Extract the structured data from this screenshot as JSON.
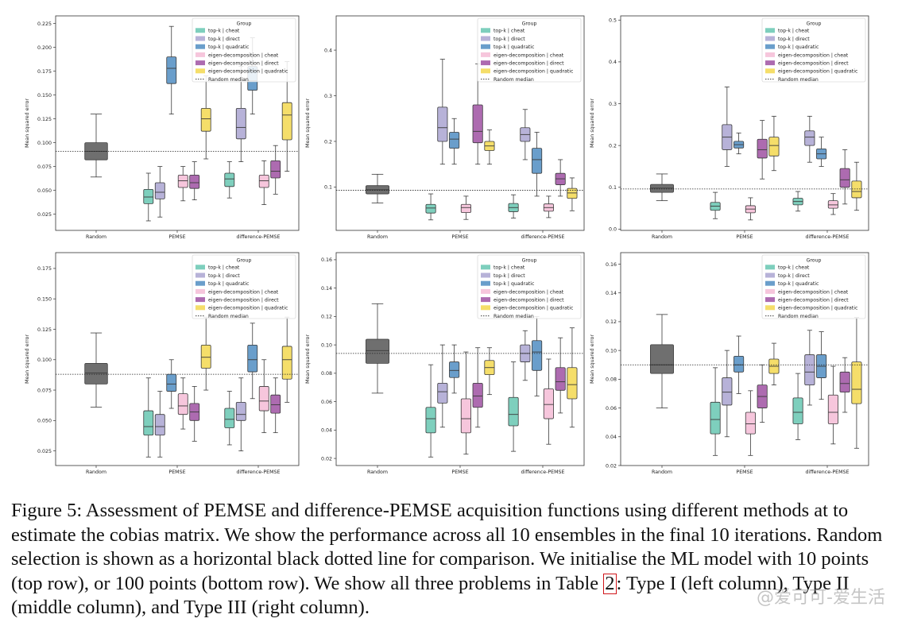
{
  "colors": {
    "random": "#6f6f6f",
    "topk_cheat": "#7ecfbd",
    "topk_direct": "#b7b2d8",
    "topk_quadratic": "#6a9ecb",
    "eigen_cheat": "#f6c6dc",
    "eigen_direct": "#ad6bb0",
    "eigen_quadratic": "#f5de6a"
  },
  "caption": {
    "line1": "Figure 5: Assessment of PEMSE and difference-PEMSE acquisition functions using different methods at to estimate the cobias matrix. We show the performance across all 10 ensembles in the final 10 iterations. Random selection is shown as a horizontal black dotted line for comparison. We initialise the ML model with 10 points (top row), or 100 points (bottom row). We show all three problems in Table ",
    "ref": "2",
    "line2": ": Type I (left column), Type II (middle column), and Type III (right column)."
  },
  "watermark": "@爱可可-爱生活",
  "chart_data": [
    {
      "type": "box",
      "panel": "top-left",
      "ylabel": "Mean squared error",
      "categories": [
        "Random",
        "PEMSE",
        "difference-PEMSE"
      ],
      "yticks": [
        0.025,
        0.05,
        0.075,
        0.1,
        0.125,
        0.15,
        0.175,
        0.2,
        0.225
      ],
      "ytick_labels": [
        "0.025",
        "0.050",
        "0.075",
        "0.100",
        "0.125",
        "0.150",
        "0.175",
        "0.200",
        "0.225"
      ],
      "ylim": [
        0.008,
        0.233
      ],
      "random_median": 0.091,
      "legend_title": "Group",
      "legend": [
        "top-k | cheat",
        "top-k | direct",
        "top-k | quadratic",
        "eigen-decomposition | cheat",
        "eigen-decomposition | direct",
        "eigen-decomposition | quadratic",
        "Random median"
      ],
      "random": [
        0.064,
        0.082,
        0.091,
        0.1,
        0.13
      ],
      "groups": [
        [
          [
            0.018,
            0.036,
            0.043,
            0.051,
            0.068
          ],
          [
            0.022,
            0.041,
            0.048,
            0.058,
            0.075
          ],
          [
            0.13,
            0.162,
            0.178,
            0.19,
            0.222
          ],
          [
            0.039,
            0.053,
            0.06,
            0.066,
            0.075
          ],
          [
            0.04,
            0.052,
            0.058,
            0.066,
            0.08
          ],
          [
            0.083,
            0.112,
            0.125,
            0.136,
            0.17
          ]
        ],
        [
          [
            0.042,
            0.054,
            0.062,
            0.068,
            0.08
          ],
          [
            0.08,
            0.104,
            0.116,
            0.136,
            0.18
          ],
          [
            0.13,
            0.155,
            0.165,
            0.18,
            0.21
          ],
          [
            0.035,
            0.053,
            0.06,
            0.066,
            0.081
          ],
          [
            0.046,
            0.063,
            0.07,
            0.081,
            0.097
          ],
          [
            0.07,
            0.103,
            0.129,
            0.142,
            0.185
          ]
        ]
      ]
    },
    {
      "type": "box",
      "panel": "top-middle",
      "ylabel": "Mean squared error",
      "categories": [
        "Random",
        "PEMSE",
        "difference-PEMSE"
      ],
      "yticks": [
        0.1,
        0.2,
        0.3,
        0.4
      ],
      "ytick_labels": [
        "0.1",
        "0.2",
        "0.3",
        "0.4"
      ],
      "ylim": [
        0.005,
        0.475
      ],
      "random_median": 0.093,
      "legend_title": "Group",
      "legend": [
        "top-k | cheat",
        "top-k | direct",
        "top-k | quadratic",
        "eigen-decomposition | cheat",
        "eigen-decomposition | direct",
        "eigen-decomposition | quadratic",
        "Random median"
      ],
      "random": [
        0.065,
        0.085,
        0.094,
        0.103,
        0.128
      ],
      "groups": [
        [
          [
            0.028,
            0.043,
            0.054,
            0.062,
            0.085
          ],
          [
            0.15,
            0.2,
            0.23,
            0.275,
            0.38
          ],
          [
            0.15,
            0.185,
            0.205,
            0.22,
            0.25
          ],
          [
            0.029,
            0.044,
            0.055,
            0.062,
            0.08
          ],
          [
            0.15,
            0.197,
            0.222,
            0.28,
            0.37
          ],
          [
            0.15,
            0.18,
            0.19,
            0.2,
            0.225
          ]
        ],
        [
          [
            0.032,
            0.046,
            0.055,
            0.064,
            0.083
          ],
          [
            0.16,
            0.2,
            0.215,
            0.23,
            0.27
          ],
          [
            0.08,
            0.13,
            0.16,
            0.185,
            0.22
          ],
          [
            0.033,
            0.047,
            0.055,
            0.063,
            0.08
          ],
          [
            0.08,
            0.105,
            0.118,
            0.13,
            0.16
          ],
          [
            0.048,
            0.075,
            0.087,
            0.097,
            0.12
          ]
        ]
      ]
    },
    {
      "type": "box",
      "panel": "top-right",
      "ylabel": "Mean squared error",
      "categories": [
        "Random",
        "PEMSE",
        "difference-PEMSE"
      ],
      "yticks": [
        0.0,
        0.1,
        0.2,
        0.3,
        0.4,
        0.5
      ],
      "ytick_labels": [
        "0.0",
        "0.1",
        "0.2",
        "0.3",
        "0.4",
        "0.5"
      ],
      "ylim": [
        -0.003,
        0.51
      ],
      "random_median": 0.096,
      "legend_title": "Group",
      "legend": [
        "top-k | cheat",
        "top-k | direct",
        "top-k | quadratic",
        "eigen-decomposition | cheat",
        "eigen-decomposition | direct",
        "eigen-decomposition | quadratic",
        "Random median"
      ],
      "random": [
        0.068,
        0.088,
        0.098,
        0.107,
        0.132
      ],
      "groups": [
        [
          [
            0.025,
            0.045,
            0.055,
            0.064,
            0.088
          ],
          [
            0.15,
            0.19,
            0.22,
            0.25,
            0.34
          ],
          [
            0.18,
            0.194,
            0.202,
            0.21,
            0.23
          ],
          [
            0.022,
            0.039,
            0.048,
            0.056,
            0.075
          ],
          [
            0.12,
            0.17,
            0.19,
            0.215,
            0.26
          ],
          [
            0.14,
            0.175,
            0.2,
            0.22,
            0.27
          ]
        ],
        [
          [
            0.043,
            0.058,
            0.066,
            0.074,
            0.09
          ],
          [
            0.16,
            0.2,
            0.22,
            0.235,
            0.27
          ],
          [
            0.15,
            0.168,
            0.18,
            0.192,
            0.22
          ],
          [
            0.035,
            0.05,
            0.058,
            0.068,
            0.085
          ],
          [
            0.06,
            0.1,
            0.118,
            0.145,
            0.19
          ],
          [
            0.045,
            0.075,
            0.09,
            0.115,
            0.16
          ]
        ]
      ]
    },
    {
      "type": "box",
      "panel": "bottom-left",
      "ylabel": "Mean squared error",
      "categories": [
        "Random",
        "PEMSE",
        "difference-PEMSE"
      ],
      "yticks": [
        0.025,
        0.05,
        0.075,
        0.1,
        0.125,
        0.15,
        0.175
      ],
      "ytick_labels": [
        "0.025",
        "0.050",
        "0.075",
        "0.100",
        "0.125",
        "0.150",
        "0.175"
      ],
      "ylim": [
        0.013,
        0.188
      ],
      "random_median": 0.088,
      "legend_title": "Group",
      "legend": [
        "top-k | cheat",
        "top-k | direct",
        "top-k | quadratic",
        "eigen-decomposition | cheat",
        "eigen-decomposition | direct",
        "eigen-decomposition | quadratic",
        "Random median"
      ],
      "random": [
        0.061,
        0.08,
        0.089,
        0.097,
        0.122
      ],
      "groups": [
        [
          [
            0.02,
            0.038,
            0.045,
            0.058,
            0.085
          ],
          [
            0.02,
            0.038,
            0.045,
            0.055,
            0.074
          ],
          [
            0.06,
            0.074,
            0.08,
            0.088,
            0.1
          ],
          [
            0.043,
            0.055,
            0.062,
            0.072,
            0.085
          ],
          [
            0.033,
            0.05,
            0.057,
            0.064,
            0.078
          ],
          [
            0.075,
            0.093,
            0.102,
            0.112,
            0.135
          ]
        ],
        [
          [
            0.03,
            0.044,
            0.051,
            0.06,
            0.074
          ],
          [
            0.025,
            0.05,
            0.055,
            0.065,
            0.085
          ],
          [
            0.068,
            0.09,
            0.1,
            0.112,
            0.13
          ],
          [
            0.04,
            0.058,
            0.066,
            0.078,
            0.1
          ],
          [
            0.04,
            0.056,
            0.063,
            0.071,
            0.085
          ],
          [
            0.065,
            0.084,
            0.1,
            0.111,
            0.135
          ]
        ]
      ]
    },
    {
      "type": "box",
      "panel": "bottom-middle",
      "ylabel": "Mean squared error",
      "categories": [
        "Random",
        "PEMSE",
        "difference-PEMSE"
      ],
      "yticks": [
        0.02,
        0.04,
        0.06,
        0.08,
        0.1,
        0.12,
        0.14,
        0.16
      ],
      "ytick_labels": [
        "0.02",
        "0.04",
        "0.06",
        "0.08",
        "0.10",
        "0.12",
        "0.14",
        "0.16"
      ],
      "ylim": [
        0.015,
        0.165
      ],
      "random_median": 0.094,
      "legend_title": "Group",
      "legend": [
        "top-k | cheat",
        "top-k | direct",
        "top-k | quadratic",
        "eigen-decomposition | cheat",
        "eigen-decomposition | direct",
        "eigen-decomposition | quadratic",
        "Random median"
      ],
      "random": [
        0.066,
        0.087,
        0.096,
        0.104,
        0.129
      ],
      "groups": [
        [
          [
            0.021,
            0.038,
            0.048,
            0.056,
            0.086
          ],
          [
            0.042,
            0.059,
            0.067,
            0.073,
            0.1
          ],
          [
            0.066,
            0.077,
            0.082,
            0.088,
            0.1
          ],
          [
            0.023,
            0.038,
            0.048,
            0.062,
            0.095
          ],
          [
            0.042,
            0.056,
            0.064,
            0.073,
            0.098
          ],
          [
            0.065,
            0.079,
            0.084,
            0.089,
            0.098
          ]
        ],
        [
          [
            0.025,
            0.043,
            0.051,
            0.063,
            0.088
          ],
          [
            0.075,
            0.088,
            0.094,
            0.1,
            0.11
          ],
          [
            0.064,
            0.082,
            0.095,
            0.103,
            0.12
          ],
          [
            0.03,
            0.048,
            0.058,
            0.069,
            0.09
          ],
          [
            0.052,
            0.068,
            0.074,
            0.084,
            0.105
          ],
          [
            0.042,
            0.062,
            0.072,
            0.084,
            0.112
          ]
        ]
      ]
    },
    {
      "type": "box",
      "panel": "bottom-right",
      "ylabel": "Mean squared error",
      "categories": [
        "Random",
        "PEMSE",
        "difference-PEMSE"
      ],
      "yticks": [
        0.02,
        0.04,
        0.06,
        0.08,
        0.1,
        0.12,
        0.14,
        0.16
      ],
      "ytick_labels": [
        "0.02",
        "0.04",
        "0.06",
        "0.08",
        "0.10",
        "0.12",
        "0.14",
        "0.16"
      ],
      "ylim": [
        0.02,
        0.168
      ],
      "random_median": 0.09,
      "legend_title": "Group",
      "legend": [
        "top-k | cheat",
        "top-k | direct",
        "top-k | quadratic",
        "eigen-decomposition | cheat",
        "eigen-decomposition | direct",
        "eigen-decomposition | quadratic",
        "Random median"
      ],
      "random": [
        0.06,
        0.084,
        0.09,
        0.104,
        0.125
      ],
      "groups": [
        [
          [
            0.027,
            0.042,
            0.052,
            0.064,
            0.088
          ],
          [
            0.04,
            0.062,
            0.071,
            0.081,
            0.1
          ],
          [
            0.07,
            0.085,
            0.09,
            0.096,
            0.11
          ],
          [
            0.027,
            0.042,
            0.049,
            0.057,
            0.072
          ],
          [
            0.05,
            0.06,
            0.068,
            0.076,
            0.09
          ],
          [
            0.076,
            0.084,
            0.089,
            0.094,
            0.105
          ]
        ],
        [
          [
            0.038,
            0.049,
            0.057,
            0.067,
            0.084
          ],
          [
            0.062,
            0.076,
            0.085,
            0.097,
            0.114
          ],
          [
            0.066,
            0.081,
            0.089,
            0.097,
            0.113
          ],
          [
            0.035,
            0.049,
            0.057,
            0.069,
            0.089
          ],
          [
            0.057,
            0.071,
            0.077,
            0.085,
            0.095
          ],
          [
            0.032,
            0.063,
            0.073,
            0.092,
            0.123
          ]
        ]
      ]
    }
  ]
}
